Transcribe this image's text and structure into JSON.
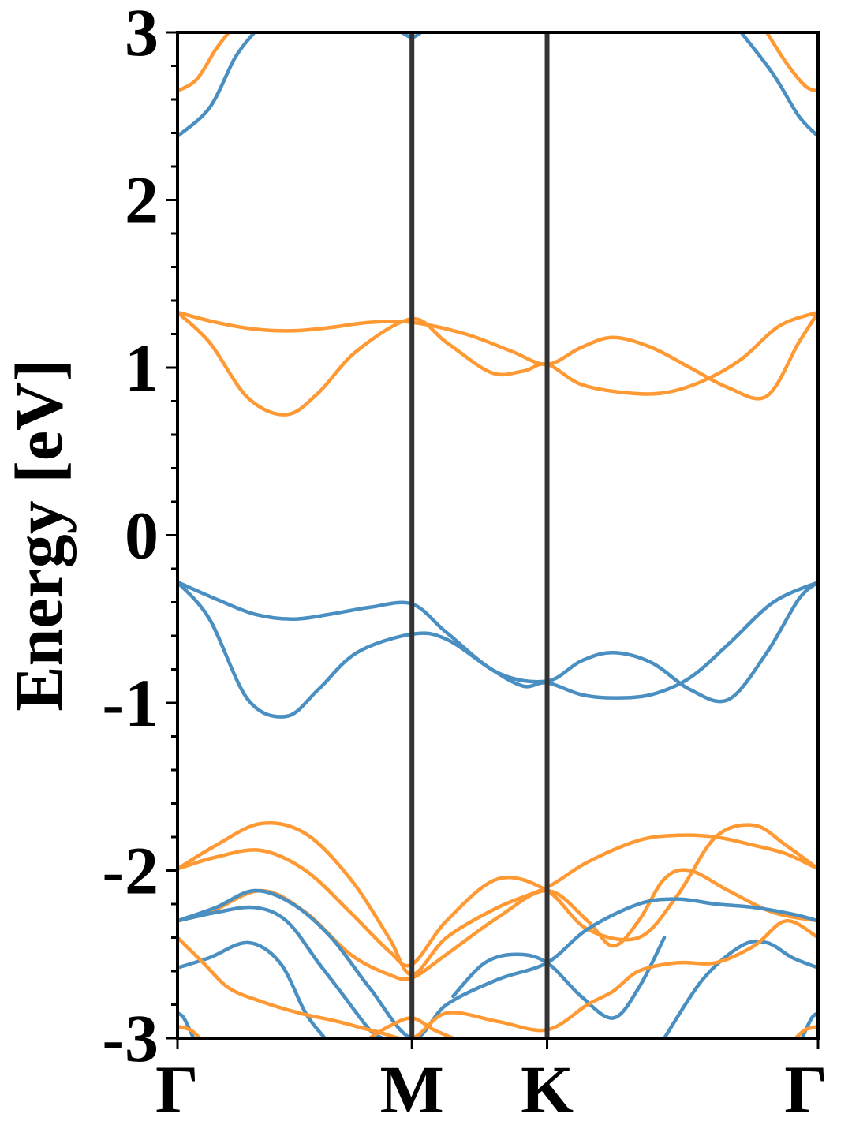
{
  "chart_data": {
    "type": "line",
    "title": "",
    "xlabel": "",
    "ylabel": "Energy [eV]",
    "ylim": [
      -3,
      3
    ],
    "xlim": [
      0,
      1
    ],
    "grid": false,
    "legend": "none",
    "kpoints": [
      {
        "label": "Γ",
        "x": 0.0
      },
      {
        "label": "M",
        "x": 0.366
      },
      {
        "label": "K",
        "x": 0.577
      },
      {
        "label": "Γ",
        "x": 1.0
      }
    ],
    "yticks": [
      {
        "label": "3",
        "value": 3
      },
      {
        "label": "2",
        "value": 2
      },
      {
        "label": "1",
        "value": 1
      },
      {
        "label": "0",
        "value": 0
      },
      {
        "label": "-1",
        "value": -1
      },
      {
        "label": "-2",
        "value": -2
      },
      {
        "label": "-3",
        "value": -3
      }
    ],
    "colors": {
      "blue": "#4a8fc1",
      "orange": "#ff9933",
      "kline": "#333333"
    },
    "series": [
      {
        "color": "blue",
        "x": [
          0,
          0.05,
          0.09,
          0.12
        ],
        "y": [
          2.38,
          2.55,
          2.85,
          3.0
        ]
      },
      {
        "color": "blue",
        "x": [
          0.35,
          0.366,
          0.38
        ],
        "y": [
          3.0,
          2.97,
          3.0
        ]
      },
      {
        "color": "blue",
        "x": [
          0.88,
          0.93,
          0.97,
          1.0
        ],
        "y": [
          3.0,
          2.75,
          2.5,
          2.38
        ]
      },
      {
        "color": "orange",
        "x": [
          0,
          0.03,
          0.06,
          0.08
        ],
        "y": [
          2.65,
          2.72,
          2.9,
          3.0
        ]
      },
      {
        "color": "orange",
        "x": [
          0.92,
          0.95,
          0.98,
          1.0
        ],
        "y": [
          3.0,
          2.82,
          2.68,
          2.65
        ]
      },
      {
        "color": "orange",
        "x": [
          0,
          0.06,
          0.12,
          0.18,
          0.24,
          0.3,
          0.366,
          0.45,
          0.52,
          0.577,
          0.63,
          0.68,
          0.74,
          0.8,
          0.86,
          0.92,
          0.97,
          1.0
        ],
        "y": [
          1.33,
          1.27,
          1.23,
          1.22,
          1.24,
          1.27,
          1.27,
          1.2,
          1.1,
          1.02,
          1.12,
          1.18,
          1.12,
          1.0,
          0.88,
          0.83,
          1.15,
          1.33
        ]
      },
      {
        "color": "orange",
        "x": [
          0,
          0.05,
          0.11,
          0.17,
          0.22,
          0.28,
          0.366,
          0.42,
          0.49,
          0.54,
          0.577,
          0.63,
          0.7,
          0.76,
          0.82,
          0.88,
          0.94,
          1.0
        ],
        "y": [
          1.33,
          1.15,
          0.82,
          0.72,
          0.85,
          1.1,
          1.29,
          1.15,
          0.97,
          0.98,
          1.02,
          0.9,
          0.85,
          0.85,
          0.92,
          1.05,
          1.25,
          1.33
        ]
      },
      {
        "color": "blue",
        "x": [
          0,
          0.06,
          0.12,
          0.18,
          0.24,
          0.3,
          0.366,
          0.42,
          0.5,
          0.577,
          0.63,
          0.68,
          0.74,
          0.8,
          0.86,
          0.92,
          0.97,
          1.0
        ],
        "y": [
          -0.28,
          -0.38,
          -0.47,
          -0.5,
          -0.47,
          -0.43,
          -0.41,
          -0.58,
          -0.82,
          -0.87,
          -0.75,
          -0.7,
          -0.76,
          -0.92,
          -0.98,
          -0.7,
          -0.38,
          -0.28
        ]
      },
      {
        "color": "blue",
        "x": [
          0,
          0.05,
          0.11,
          0.17,
          0.22,
          0.28,
          0.366,
          0.42,
          0.49,
          0.54,
          0.577,
          0.63,
          0.68,
          0.74,
          0.8,
          0.86,
          0.93,
          1.0
        ],
        "y": [
          -0.28,
          -0.5,
          -0.98,
          -1.08,
          -0.92,
          -0.7,
          -0.59,
          -0.62,
          -0.8,
          -0.9,
          -0.88,
          -0.95,
          -0.97,
          -0.95,
          -0.85,
          -0.65,
          -0.4,
          -0.28
        ]
      },
      {
        "color": "orange",
        "x": [
          0,
          0.06,
          0.13,
          0.2,
          0.27,
          0.33,
          0.366,
          0.42,
          0.5,
          0.577,
          0.64,
          0.72,
          0.78,
          0.84,
          0.9,
          0.95,
          1.0
        ],
        "y": [
          -1.99,
          -1.85,
          -1.72,
          -1.78,
          -2.05,
          -2.4,
          -2.62,
          -2.4,
          -2.22,
          -2.1,
          -1.95,
          -1.82,
          -1.79,
          -1.8,
          -1.85,
          -1.9,
          -1.99
        ]
      },
      {
        "color": "orange",
        "x": [
          0,
          0.06,
          0.13,
          0.2,
          0.27,
          0.33,
          0.366,
          0.42,
          0.5,
          0.577,
          0.64,
          0.72,
          0.78,
          0.84,
          0.9,
          0.95,
          1.0
        ],
        "y": [
          -1.99,
          -1.92,
          -1.88,
          -2.0,
          -2.25,
          -2.48,
          -2.56,
          -2.3,
          -2.05,
          -2.12,
          -2.35,
          -2.4,
          -2.15,
          -1.8,
          -1.73,
          -1.85,
          -1.99
        ]
      },
      {
        "color": "orange",
        "x": [
          0,
          0.05,
          0.13,
          0.2,
          0.27,
          0.33,
          0.366,
          0.42,
          0.5,
          0.577,
          0.64,
          0.68,
          0.72,
          0.76,
          0.8,
          0.86,
          0.93,
          1.0
        ],
        "y": [
          -2.3,
          -2.25,
          -2.12,
          -2.25,
          -2.5,
          -2.62,
          -2.64,
          -2.5,
          -2.28,
          -2.12,
          -2.3,
          -2.45,
          -2.3,
          -2.05,
          -2.0,
          -2.12,
          -2.25,
          -2.3
        ]
      },
      {
        "color": "blue",
        "x": [
          0,
          0.06,
          0.12,
          0.18,
          0.24,
          0.3,
          0.366,
          0.42,
          0.5,
          0.577,
          0.64,
          0.72,
          0.78,
          0.84,
          0.9,
          0.96,
          1.0
        ],
        "y": [
          -2.3,
          -2.22,
          -2.12,
          -2.2,
          -2.4,
          -2.7,
          -3.0,
          -2.8,
          -2.65,
          -2.55,
          -2.35,
          -2.2,
          -2.17,
          -2.2,
          -2.22,
          -2.26,
          -2.3
        ]
      },
      {
        "color": "blue",
        "x": [
          0,
          0.06,
          0.12,
          0.17,
          0.22,
          0.26,
          0.3,
          0.32
        ],
        "y": [
          -2.3,
          -2.25,
          -2.22,
          -2.3,
          -2.55,
          -2.75,
          -2.95,
          -3.0
        ]
      },
      {
        "color": "blue",
        "x": [
          0,
          0.05,
          0.11,
          0.16,
          0.2,
          0.23
        ],
        "y": [
          -2.58,
          -2.52,
          -2.43,
          -2.55,
          -2.85,
          -3.0
        ]
      },
      {
        "color": "blue",
        "x": [
          0.43,
          0.48,
          0.53,
          0.577,
          0.63,
          0.68,
          0.72,
          0.76
        ],
        "y": [
          -2.75,
          -2.55,
          -2.5,
          -2.55,
          -2.75,
          -2.88,
          -2.7,
          -2.4
        ]
      },
      {
        "color": "blue",
        "x": [
          0.76,
          0.82,
          0.88,
          0.92,
          0.96,
          1.0
        ],
        "y": [
          -3.0,
          -2.65,
          -2.45,
          -2.43,
          -2.52,
          -2.58
        ]
      },
      {
        "color": "blue",
        "x": [
          0.975,
          0.99,
          1.0
        ],
        "y": [
          -3.0,
          -2.88,
          -2.85
        ]
      },
      {
        "color": "blue",
        "x": [
          0,
          0.01,
          0.025
        ],
        "y": [
          -2.85,
          -2.88,
          -3.0
        ]
      },
      {
        "color": "orange",
        "x": [
          0,
          0.04,
          0.08,
          0.13,
          0.19,
          0.25,
          0.31,
          0.366,
          0.42,
          0.5,
          0.577,
          0.64,
          0.68,
          0.72,
          0.78,
          0.84,
          0.9,
          0.95,
          1.0
        ],
        "y": [
          -2.4,
          -2.55,
          -2.7,
          -2.78,
          -2.85,
          -2.9,
          -2.96,
          -3.0,
          -2.85,
          -2.9,
          -2.95,
          -2.8,
          -2.72,
          -2.6,
          -2.55,
          -2.55,
          -2.45,
          -2.3,
          -2.4
        ]
      },
      {
        "color": "orange",
        "x": [
          0.3,
          0.33,
          0.366,
          0.4,
          0.43
        ],
        "y": [
          -3.0,
          -2.93,
          -2.88,
          -2.95,
          -3.0
        ]
      },
      {
        "color": "orange",
        "x": [
          0,
          0.02,
          0.035
        ],
        "y": [
          -2.93,
          -2.95,
          -3.0
        ]
      },
      {
        "color": "orange",
        "x": [
          0.965,
          0.98,
          1.0
        ],
        "y": [
          -3.0,
          -2.95,
          -2.93
        ]
      }
    ]
  }
}
